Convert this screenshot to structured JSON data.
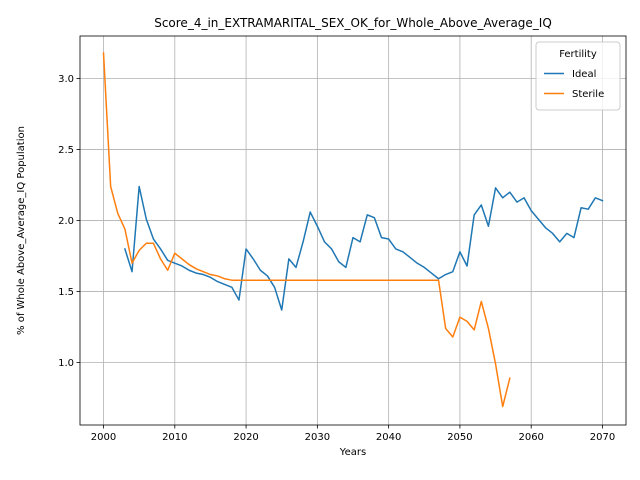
{
  "chart_data": {
    "type": "line",
    "title": "Score_4_in_EXTRAMARITAL_SEX_OK_for_Whole_Above_Average_IQ",
    "xlabel": "Years",
    "ylabel": "% of Whole Above_Average_IQ Population",
    "xlim": [
      1996.7,
      2073.3
    ],
    "ylim": [
      0.56,
      3.3
    ],
    "xticks": [
      2000,
      2010,
      2020,
      2030,
      2040,
      2050,
      2060,
      2070
    ],
    "yticks": [
      1.0,
      1.5,
      2.0,
      2.5,
      3.0
    ],
    "xtick_labels": [
      "2000",
      "2010",
      "2020",
      "2030",
      "2040",
      "2050",
      "2060",
      "2070"
    ],
    "ytick_labels": [
      "1.0",
      "1.5",
      "2.0",
      "2.5",
      "3.0"
    ],
    "grid": true,
    "legend": {
      "title": "Fertility",
      "placement": "top-right"
    },
    "series": [
      {
        "name": "Ideal",
        "color": "#1f77b4",
        "x": [
          2003,
          2004,
          2005,
          2006,
          2007,
          2008,
          2009,
          2010,
          2011,
          2012,
          2013,
          2014,
          2015,
          2016,
          2017,
          2018,
          2019,
          2020,
          2021,
          2022,
          2023,
          2024,
          2025,
          2026,
          2027,
          2028,
          2029,
          2030,
          2031,
          2032,
          2033,
          2034,
          2035,
          2036,
          2037,
          2038,
          2039,
          2040,
          2041,
          2042,
          2043,
          2044,
          2045,
          2046,
          2047,
          2048,
          2049,
          2050,
          2051,
          2052,
          2053,
          2054,
          2055,
          2056,
          2057,
          2058,
          2059,
          2060,
          2061,
          2062,
          2063,
          2064,
          2065,
          2066,
          2067,
          2068,
          2069,
          2070
        ],
        "y": [
          1.8,
          1.64,
          2.24,
          2.01,
          1.87,
          1.8,
          1.72,
          1.7,
          1.68,
          1.65,
          1.63,
          1.62,
          1.6,
          1.57,
          1.55,
          1.53,
          1.44,
          1.8,
          1.73,
          1.65,
          1.61,
          1.53,
          1.37,
          1.73,
          1.67,
          1.85,
          2.06,
          1.96,
          1.85,
          1.8,
          1.71,
          1.67,
          1.88,
          1.85,
          2.04,
          2.02,
          1.88,
          1.87,
          1.8,
          1.78,
          1.74,
          1.7,
          1.67,
          1.63,
          1.59,
          1.62,
          1.64,
          1.78,
          1.68,
          2.04,
          2.11,
          1.96,
          2.23,
          2.16,
          2.2,
          2.13,
          2.16,
          2.07,
          2.01,
          1.95,
          1.91,
          1.85,
          1.91,
          1.88,
          2.09,
          2.08,
          2.16,
          2.14
        ]
      },
      {
        "name": "Sterile",
        "color": "#ff7f0e",
        "x": [
          2000,
          2001,
          2002,
          2003,
          2004,
          2005,
          2006,
          2007,
          2008,
          2009,
          2010,
          2011,
          2012,
          2013,
          2014,
          2015,
          2016,
          2017,
          2018,
          2019,
          2020,
          2021,
          2022,
          2023,
          2024,
          2025,
          2026,
          2027,
          2028,
          2029,
          2030,
          2031,
          2032,
          2033,
          2034,
          2035,
          2036,
          2037,
          2038,
          2039,
          2040,
          2041,
          2042,
          2043,
          2044,
          2045,
          2046,
          2047,
          2048,
          2049,
          2050,
          2051,
          2052,
          2053,
          2054,
          2055,
          2056,
          2057
        ],
        "y": [
          3.18,
          2.24,
          2.05,
          1.94,
          1.7,
          1.79,
          1.84,
          1.84,
          1.73,
          1.65,
          1.77,
          1.73,
          1.69,
          1.66,
          1.64,
          1.62,
          1.61,
          1.59,
          1.58,
          1.58,
          1.58,
          1.58,
          1.58,
          1.58,
          1.58,
          1.58,
          1.58,
          1.58,
          1.58,
          1.58,
          1.58,
          1.58,
          1.58,
          1.58,
          1.58,
          1.58,
          1.58,
          1.58,
          1.58,
          1.58,
          1.58,
          1.58,
          1.58,
          1.58,
          1.58,
          1.58,
          1.58,
          1.58,
          1.24,
          1.18,
          1.32,
          1.29,
          1.23,
          1.43,
          1.24,
          0.99,
          0.69,
          0.89
        ]
      }
    ]
  }
}
